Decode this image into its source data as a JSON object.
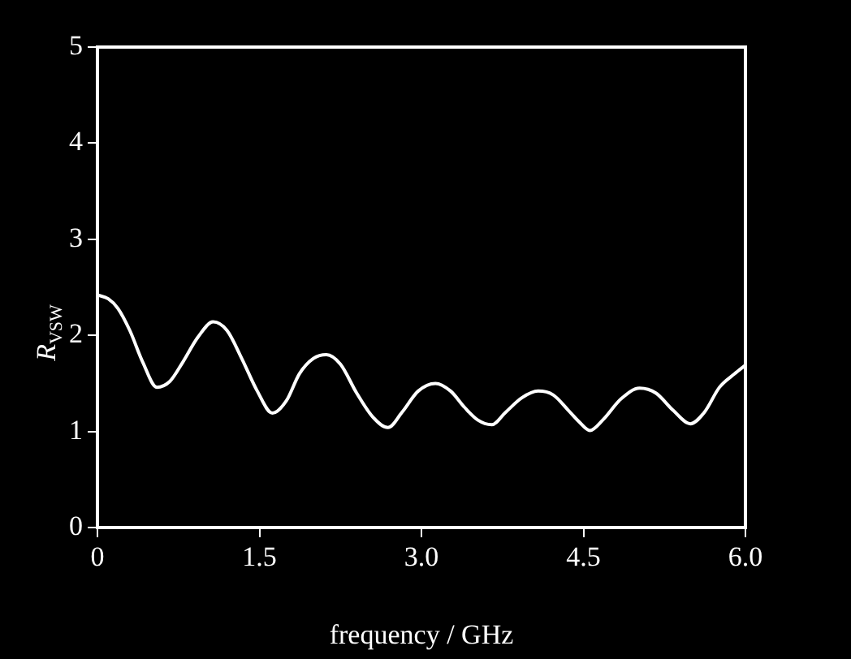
{
  "chart_data": {
    "type": "line",
    "xlabel": "frequency / GHz",
    "ylabel": "R$_{VSW}$",
    "x": [
      0,
      0.1,
      0.19,
      0.3,
      0.42,
      0.55,
      0.67,
      0.79,
      0.93,
      1.07,
      1.2,
      1.34,
      1.48,
      1.62,
      1.75,
      1.87,
      2.0,
      2.12,
      2.25,
      2.4,
      2.55,
      2.69,
      2.82,
      2.97,
      3.13,
      3.27,
      3.4,
      3.52,
      3.65,
      3.78,
      3.93,
      4.08,
      4.22,
      4.36,
      4.46,
      4.56,
      4.68,
      4.85,
      5.02,
      5.17,
      5.33,
      5.49,
      5.62,
      5.76,
      5.9,
      6.0
    ],
    "series": [
      {
        "color": "#ffffff",
        "values": [
          2.42,
          2.38,
          2.28,
          2.05,
          1.72,
          1.46,
          1.52,
          1.72,
          1.98,
          2.14,
          2.05,
          1.75,
          1.42,
          1.19,
          1.32,
          1.6,
          1.76,
          1.8,
          1.7,
          1.4,
          1.15,
          1.04,
          1.2,
          1.42,
          1.5,
          1.42,
          1.25,
          1.12,
          1.07,
          1.2,
          1.35,
          1.42,
          1.38,
          1.22,
          1.1,
          1.01,
          1.12,
          1.34,
          1.45,
          1.4,
          1.22,
          1.08,
          1.2,
          1.46,
          1.6,
          1.69
        ]
      }
    ],
    "xlim": [
      0,
      6
    ],
    "xticks": [
      0,
      1.5,
      {
        "value": 3,
        "label": "3.0"
      },
      4.5,
      {
        "value": 6,
        "label": "6.0"
      }
    ],
    "ylim": [
      0,
      5
    ],
    "yticks": [
      0,
      1,
      2,
      3,
      4,
      5
    ],
    "grid": false,
    "legend": false,
    "marker": "none",
    "line_style": "solid"
  }
}
